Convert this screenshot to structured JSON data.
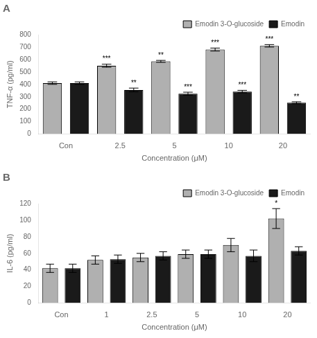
{
  "chart_data": [
    {
      "type": "bar",
      "title": "A",
      "categories": [
        "Con",
        "2.5",
        "5",
        "10",
        "20"
      ],
      "series": [
        {
          "name": "Emodin 3-O-glucoside",
          "color": "#b0b0b0",
          "values": [
            410,
            550,
            585,
            680,
            710
          ],
          "errors": [
            10,
            12,
            8,
            12,
            10
          ],
          "annotations": [
            null,
            "***",
            "**",
            "***",
            "***"
          ]
        },
        {
          "name": "Emodin",
          "color": "#1a1a1a",
          "values": [
            410,
            355,
            325,
            342,
            252
          ],
          "errors": [
            10,
            15,
            12,
            10,
            8
          ],
          "annotations": [
            null,
            "**",
            "***",
            "***",
            "**"
          ]
        }
      ],
      "xlabel": "Concentration (μM)",
      "ylabel": "TNF-α (pg/ml)",
      "ylim": [
        0,
        800
      ],
      "yticks": [
        0,
        100,
        200,
        300,
        400,
        500,
        600,
        700,
        800
      ],
      "grid": false,
      "legend": "upper right"
    },
    {
      "type": "bar",
      "title": "B",
      "categories": [
        "Con",
        "1",
        "2.5",
        "5",
        "10",
        "20"
      ],
      "series": [
        {
          "name": "Emodin 3-O-glucoside",
          "color": "#b0b0b0",
          "values": [
            42,
            52,
            55,
            59,
            70,
            102
          ],
          "errors": [
            5,
            5,
            5,
            5,
            8,
            12
          ],
          "annotations": [
            null,
            null,
            null,
            null,
            null,
            "*"
          ]
        },
        {
          "name": "Emodin",
          "color": "#1a1a1a",
          "values": [
            42,
            53,
            57,
            59,
            57,
            63
          ],
          "errors": [
            5,
            5,
            5,
            5,
            7,
            5
          ],
          "annotations": [
            null,
            null,
            null,
            null,
            null,
            null
          ]
        }
      ],
      "xlabel": "Concentration (μM)",
      "ylabel": "IL-6 (pg/ml)",
      "ylim": [
        0,
        120
      ],
      "yticks": [
        0,
        20,
        40,
        60,
        80,
        100,
        120
      ],
      "grid": false,
      "legend": "upper right"
    }
  ]
}
